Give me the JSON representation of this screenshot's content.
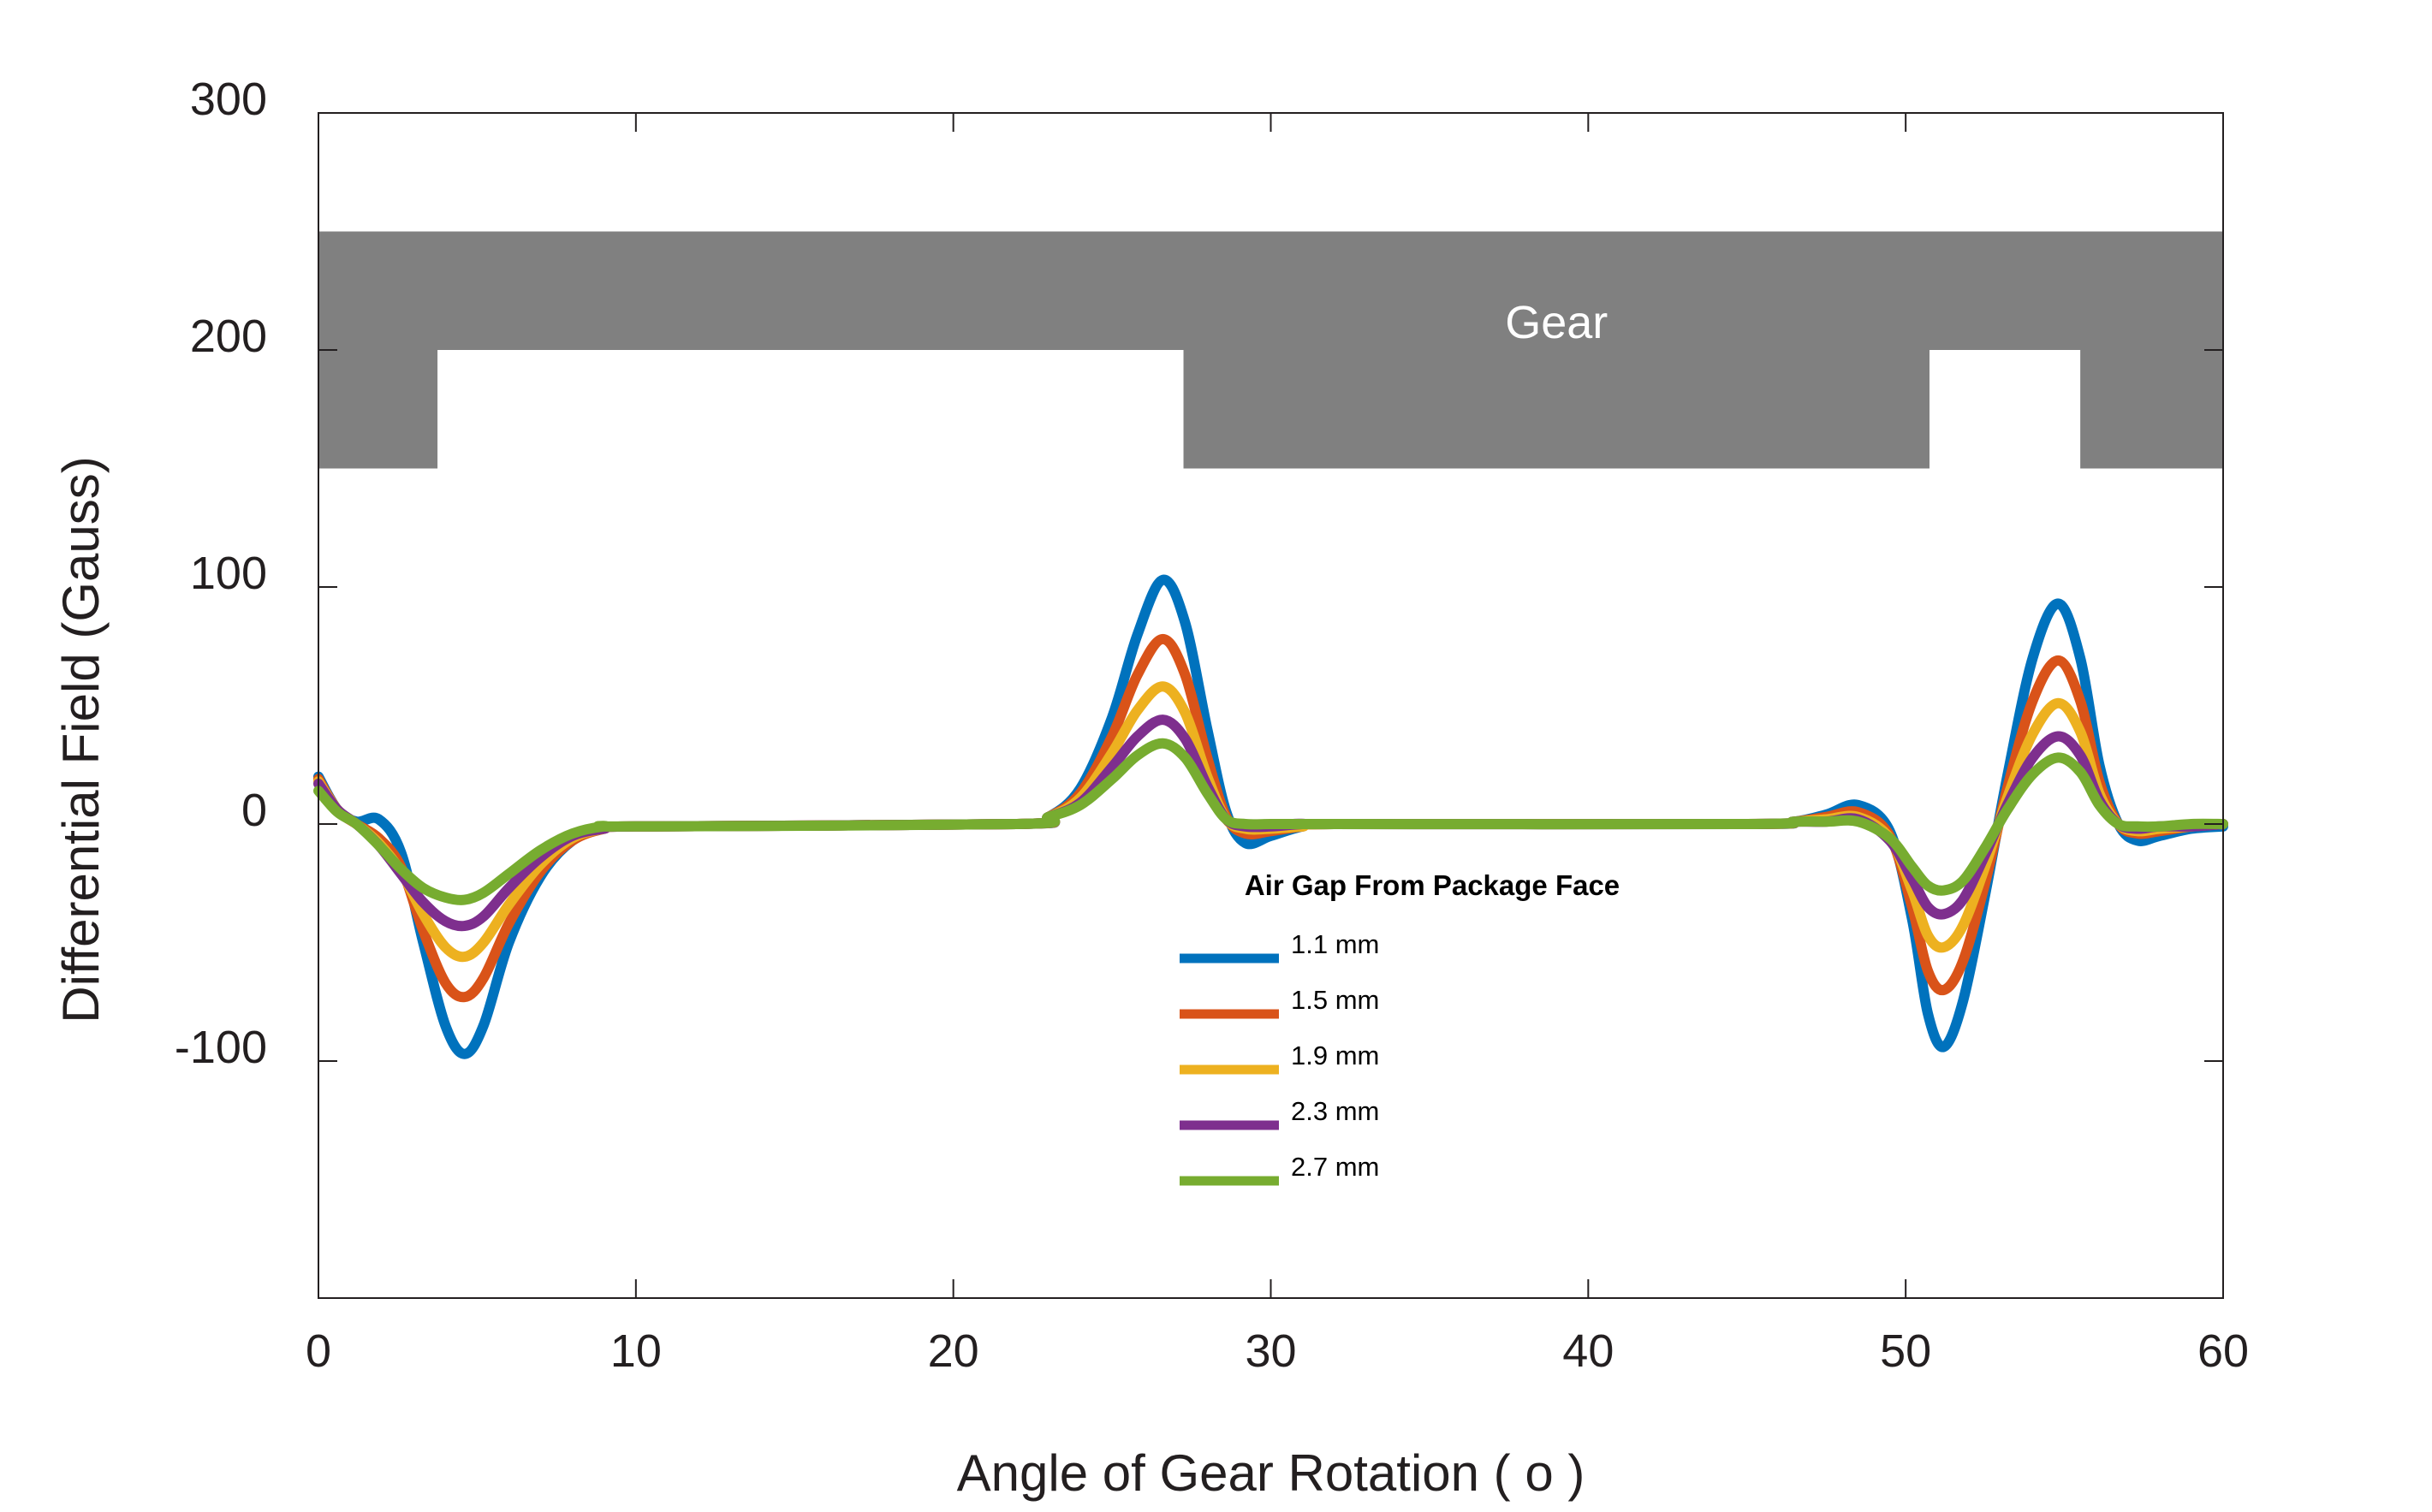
{
  "chart_data": {
    "type": "line",
    "title": "",
    "xlabel": "Angle of Gear Rotation ( o )",
    "ylabel": "Differential Field (Gauss)",
    "xlim": [
      0,
      60
    ],
    "ylim": [
      -200,
      300
    ],
    "xticks": [
      0,
      10,
      20,
      30,
      40,
      50,
      60
    ],
    "yticks": [
      -100,
      0,
      100,
      200,
      300
    ],
    "ytick_labels_shown": [
      "-100",
      "0",
      "100",
      "200",
      "300"
    ],
    "grid": false,
    "legend": {
      "title": "Air Gap From Package Face",
      "placement": "center-bottom"
    },
    "gear": {
      "label": "Gear",
      "color": "#808080",
      "band": [
        150,
        250
      ],
      "teeth_y": [
        150,
        200
      ],
      "teeth": [
        [
          0,
          3.75
        ],
        [
          27.25,
          50.75
        ],
        [
          55.5,
          60
        ]
      ]
    },
    "series": [
      {
        "name": "1.1 mm",
        "color": "#0072bd",
        "x": [
          0,
          0.6,
          1.2,
          1.9,
          2.6,
          3.3,
          4.0,
          4.6,
          5.2,
          6.0,
          7.0,
          8.0,
          9.0,
          10.0,
          22.0,
          23.0,
          24.0,
          25.0,
          25.8,
          26.6,
          27.3,
          28.0,
          28.6,
          29.2,
          30.0,
          31.0,
          32.0,
          45.0,
          46.5,
          47.5,
          48.5,
          49.5,
          50.2,
          50.7,
          51.2,
          51.8,
          52.5,
          53.2,
          54.0,
          54.8,
          55.5,
          56.1,
          56.7,
          57.3,
          58.0,
          59.0,
          60.0
        ],
        "y": [
          20,
          6,
          1,
          2,
          -12,
          -50,
          -85,
          -97,
          -85,
          -50,
          -22,
          -7,
          -2,
          -1,
          0,
          3,
          15,
          45,
          80,
          103,
          85,
          40,
          5,
          -8,
          -5,
          -1,
          0,
          0,
          1,
          4,
          8,
          -3,
          -40,
          -80,
          -94,
          -75,
          -30,
          20,
          70,
          93,
          70,
          25,
          0,
          -7,
          -5,
          -2,
          -1
        ]
      },
      {
        "name": "1.5 mm",
        "color": "#d95319",
        "x": [
          0,
          0.6,
          1.2,
          1.9,
          2.6,
          3.3,
          4.0,
          4.6,
          5.2,
          6.0,
          7.0,
          8.0,
          9.0,
          10.0,
          22.0,
          23.0,
          24.0,
          25.0,
          25.8,
          26.6,
          27.3,
          28.0,
          28.6,
          29.2,
          30.0,
          31.0,
          32.0,
          45.0,
          46.5,
          47.5,
          48.5,
          49.5,
          50.2,
          50.7,
          51.2,
          51.8,
          52.5,
          53.2,
          54.0,
          54.8,
          55.5,
          56.1,
          56.7,
          57.3,
          58.0,
          59.0,
          60.0
        ],
        "y": [
          19,
          6,
          0,
          -6,
          -18,
          -45,
          -67,
          -73,
          -65,
          -42,
          -20,
          -7,
          -2,
          -1,
          0,
          3,
          13,
          37,
          63,
          78,
          63,
          28,
          3,
          -4,
          -3,
          -1,
          0,
          0,
          1,
          3,
          5,
          -5,
          -35,
          -62,
          -70,
          -58,
          -25,
          15,
          52,
          69,
          52,
          18,
          0,
          -4,
          -3,
          -1,
          0
        ]
      },
      {
        "name": "1.9 mm",
        "color": "#edb120",
        "x": [
          0,
          0.6,
          1.2,
          1.9,
          2.6,
          3.3,
          4.0,
          4.6,
          5.2,
          6.0,
          7.0,
          8.0,
          9.0,
          10.0,
          22.0,
          23.0,
          24.0,
          25.0,
          25.8,
          26.6,
          27.3,
          28.0,
          28.6,
          29.2,
          30.0,
          31.0,
          32.0,
          45.0,
          46.5,
          47.5,
          48.5,
          49.5,
          50.2,
          50.7,
          51.2,
          51.8,
          52.5,
          53.2,
          54.0,
          54.8,
          55.5,
          56.1,
          56.7,
          57.3,
          58.0,
          59.0,
          60.0
        ],
        "y": [
          18,
          6,
          0,
          -8,
          -20,
          -38,
          -52,
          -56,
          -50,
          -34,
          -17,
          -6,
          -2,
          -1,
          0,
          3,
          11,
          30,
          48,
          58,
          47,
          20,
          2,
          -2,
          -2,
          -1,
          0,
          0,
          1,
          2,
          3,
          -6,
          -28,
          -47,
          -52,
          -43,
          -18,
          11,
          38,
          51,
          39,
          13,
          0,
          -3,
          -2,
          -1,
          0
        ]
      },
      {
        "name": "2.3 mm",
        "color": "#7e2f8e",
        "x": [
          0,
          0.6,
          1.2,
          1.9,
          2.6,
          3.3,
          4.0,
          4.6,
          5.2,
          6.0,
          7.0,
          8.0,
          9.0,
          10.0,
          22.0,
          23.0,
          24.0,
          25.0,
          25.8,
          26.6,
          27.3,
          28.0,
          28.6,
          29.2,
          30.0,
          31.0,
          32.0,
          45.0,
          46.5,
          47.5,
          48.5,
          49.5,
          50.2,
          50.7,
          51.2,
          51.8,
          52.5,
          53.2,
          54.0,
          54.8,
          55.5,
          56.1,
          56.7,
          57.3,
          58.0,
          59.0,
          60.0
        ],
        "y": [
          17,
          6,
          0,
          -9,
          -21,
          -33,
          -41,
          -43,
          -39,
          -27,
          -14,
          -5,
          -2,
          -1,
          0,
          3,
          9,
          24,
          37,
          44,
          36,
          16,
          2,
          -1,
          -1,
          0,
          0,
          0,
          1,
          1,
          2,
          -7,
          -23,
          -35,
          -38,
          -32,
          -13,
          8,
          28,
          37,
          29,
          10,
          0,
          -2,
          -1,
          -1,
          0
        ]
      },
      {
        "name": "2.7 mm",
        "color": "#77ac30",
        "x": [
          0,
          0.6,
          1.2,
          1.9,
          2.6,
          3.3,
          4.0,
          4.6,
          5.2,
          6.0,
          7.0,
          8.0,
          9.0,
          10.0,
          22.0,
          23.0,
          24.0,
          25.0,
          25.8,
          26.6,
          27.3,
          28.0,
          28.6,
          29.2,
          30.0,
          31.0,
          32.0,
          45.0,
          46.5,
          47.5,
          48.5,
          49.5,
          50.2,
          50.7,
          51.2,
          51.8,
          52.5,
          53.2,
          54.0,
          54.8,
          55.5,
          56.1,
          56.7,
          57.3,
          58.0,
          59.0,
          60.0
        ],
        "y": [
          14,
          5,
          0,
          -9,
          -19,
          -27,
          -31,
          -32,
          -29,
          -21,
          -11,
          -4,
          -1,
          -1,
          0,
          3,
          8,
          19,
          29,
          34,
          28,
          13,
          2,
          0,
          0,
          0,
          0,
          0,
          1,
          1,
          1,
          -6,
          -18,
          -26,
          -28,
          -24,
          -10,
          6,
          21,
          28,
          22,
          8,
          0,
          -1,
          -1,
          0,
          0
        ]
      }
    ]
  }
}
